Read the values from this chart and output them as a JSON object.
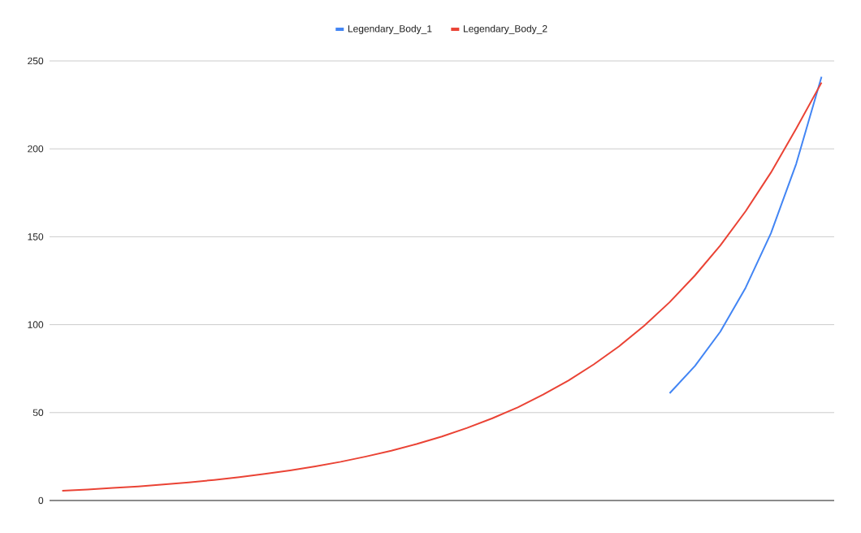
{
  "chart_data": {
    "type": "line",
    "categories": [
      null,
      null,
      null,
      null,
      null,
      null,
      null,
      null,
      null,
      null,
      null,
      null,
      null,
      null,
      null,
      null,
      null,
      null,
      null,
      null,
      null,
      null,
      null,
      null,
      null,
      null,
      null,
      null,
      null,
      null,
      null
    ],
    "series": [
      {
        "name": "Legendary_Body_1",
        "color": "#4285f4",
        "values": [
          null,
          null,
          null,
          null,
          null,
          null,
          null,
          null,
          null,
          null,
          null,
          null,
          null,
          null,
          null,
          null,
          null,
          null,
          null,
          null,
          null,
          null,
          null,
          null,
          61,
          76.5,
          96,
          121,
          152,
          191.5,
          241
        ]
      },
      {
        "name": "Legendary_Body_2",
        "color": "#ea4335",
        "values": [
          5.5,
          6.2,
          7.1,
          8.0,
          9.1,
          10.3,
          11.7,
          13.3,
          15.1,
          17.1,
          19.4,
          22,
          25,
          28.3,
          32.1,
          36.4,
          41.3,
          46.8,
          53,
          60.2,
          68.2,
          77.4,
          87.7,
          99.5,
          112.8,
          128,
          145,
          164.5,
          186.5,
          211.5,
          237.7
        ]
      }
    ],
    "ylim": [
      0,
      250
    ],
    "yticks": [
      0,
      50,
      100,
      150,
      200,
      250
    ],
    "grid": "y",
    "legend": "top"
  }
}
